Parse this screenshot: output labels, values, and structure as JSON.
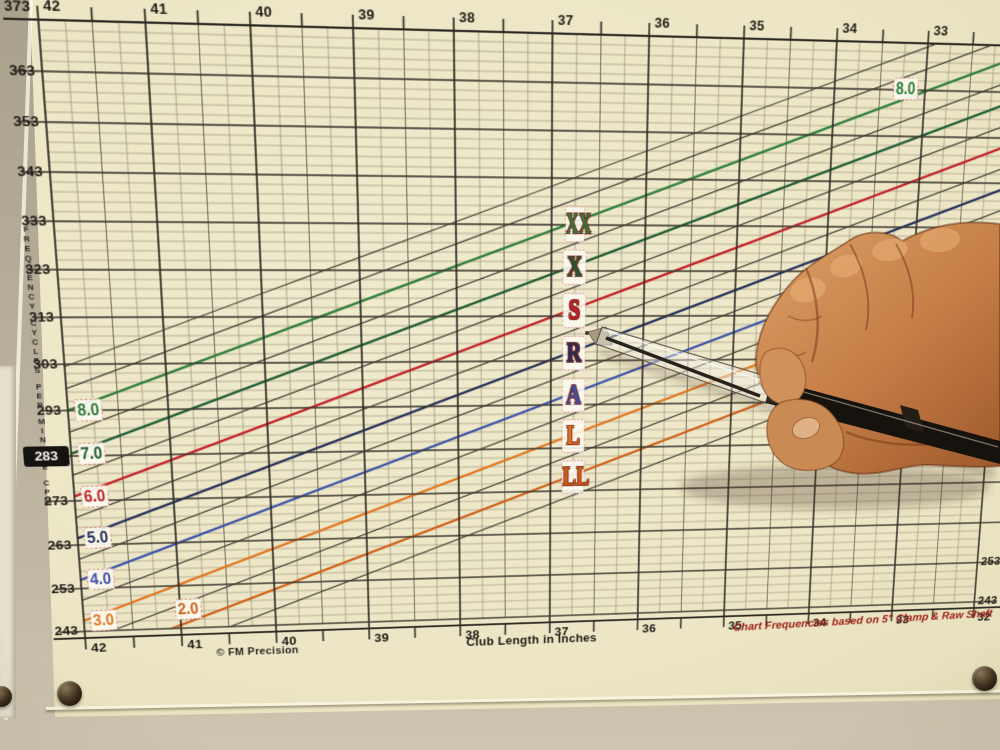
{
  "scene": {
    "description": "FM Precision golf shaft frequency slope chart printed on a cream sheet pinned to a wall; a right hand holding a clear ballpoint pen points at the chart near the R flex line",
    "wall_color": "#b2aa96",
    "paper_color": "#ece6c6",
    "pushpin_count": 3
  },
  "chart_data": {
    "type": "line",
    "xlabel": "Club Length in Inches",
    "ylabel_words": [
      "FREQUENCY",
      "CYCLES",
      "PER",
      "MINUTE",
      "CPM"
    ],
    "x_axis": {
      "unit": "inches",
      "min": 32,
      "max": 42,
      "ticks_top": [
        42,
        41,
        40,
        39,
        38,
        37,
        36,
        35,
        34,
        33
      ],
      "ticks_bottom": [
        42,
        41,
        40,
        39,
        38,
        37,
        36,
        35,
        34,
        33,
        32
      ],
      "minor_step": 0.25,
      "ruler_tick_step": 0.5
    },
    "y_axis": {
      "unit": "cpm",
      "min": 243,
      "max": 373,
      "ticks_left": [
        373,
        363,
        353,
        343,
        333,
        323,
        313,
        303,
        293,
        283,
        273,
        263,
        253,
        243
      ],
      "ticks_right_visible": [
        253,
        243
      ],
      "minor_step": 2,
      "major_step": 10
    },
    "highlighted_frequency": "283",
    "slope_cpm_per_inch": 7.75,
    "flex_series": [
      {
        "flex": "2.0",
        "letter": "LL",
        "cpm_at_42in": 236,
        "color": "#cf5f17"
      },
      {
        "flex": "3.0",
        "letter": "L",
        "cpm_at_42in": 245.5,
        "color": "#e0761f"
      },
      {
        "flex": "4.0",
        "letter": "A",
        "cpm_at_42in": 255,
        "color": "#3d52a8"
      },
      {
        "flex": "5.0",
        "letter": "R",
        "cpm_at_42in": 264.5,
        "color": "#252e57"
      },
      {
        "flex": "6.0",
        "letter": "S",
        "cpm_at_42in": 274,
        "color": "#c12026"
      },
      {
        "flex": "7.0",
        "letter": "X",
        "cpm_at_42in": 283.5,
        "color": "#1d5c33"
      },
      {
        "flex": "8.0",
        "letter": "XX",
        "cpm_at_42in": 293,
        "color": "#2f7d3a"
      }
    ],
    "half_step_lines": {
      "flex_min": 1.5,
      "flex_max": 9.0,
      "step": 0.5,
      "color": "#35332b"
    },
    "letter_label_length_in": 36.8,
    "top_right_line_label": "8.0",
    "footnote_left": "© FM Precision",
    "footnote_right": "Chart Frequencies based on 5\" Clamp & Raw Shaft",
    "grid": "on",
    "legend_position": "labels on lines"
  },
  "overlay": {
    "hand": "right hand, fingers curled, entering from right edge",
    "pen": "clear-barrel ballpoint pen with black rear half",
    "pen_tip_at": {
      "length_in": 37.1,
      "cpm": 310
    }
  }
}
